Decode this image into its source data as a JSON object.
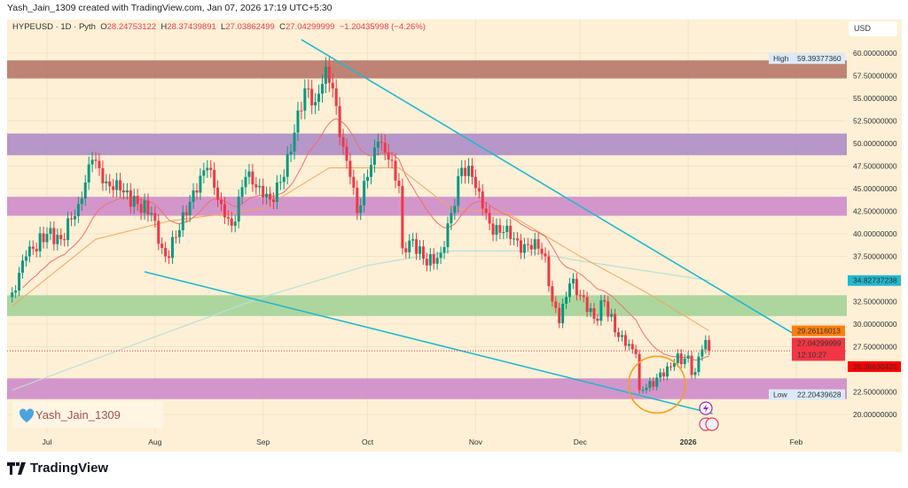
{
  "credit": "Yash_Jain_1309 created with TradingView.com, Jan 07, 2026 17:19 UTC+5:30",
  "legend": {
    "symbol": "HYPEUSD · 1D · Pyth",
    "o_label": "O",
    "o": "28.24753122",
    "h_label": "H",
    "h": "28.37439891",
    "l_label": "L",
    "l": "27.03862499",
    "c_label": "C",
    "c": "27.04299999",
    "change": "−1.20435998 (−4.26%)"
  },
  "currency": "USD",
  "watermark": "Yash_Jain_1309",
  "brand": "TradingView",
  "colors": {
    "up": "#089981",
    "down": "#f23645",
    "trendline": "#22b8cf",
    "ema_fast": "#f26d6d",
    "ema_slow": "#f7a35c",
    "ma_long": "#b8e0d8",
    "circle": "#f7a01e",
    "background": "#fdf0d6"
  },
  "chart_data": {
    "type": "candlestick",
    "ylim": [
      18.5,
      61
    ],
    "y_ticks": [
      "60.00000000",
      "57.50000000",
      "55.00000000",
      "52.50000000",
      "50.00000000",
      "47.50000000",
      "45.00000000",
      "42.50000000",
      "40.00000000",
      "37.50000000",
      "32.50000000",
      "30.00000000",
      "27.50000000",
      "22.50000000",
      "20.00000000"
    ],
    "y_tick_values": [
      60,
      57.5,
      55,
      52.5,
      50,
      47.5,
      45,
      42.5,
      40,
      37.5,
      32.5,
      30,
      27.5,
      22.5,
      20
    ],
    "x_ticks": [
      {
        "label": "Jul",
        "date": "2025-07-01"
      },
      {
        "label": "Aug",
        "date": "2025-08-01"
      },
      {
        "label": "Sep",
        "date": "2025-09-01"
      },
      {
        "label": "Oct",
        "date": "2025-10-01"
      },
      {
        "label": "Nov",
        "date": "2025-11-01"
      },
      {
        "label": "Dec",
        "date": "2025-12-01"
      },
      {
        "label": "2026",
        "date": "2026-01-01"
      },
      {
        "label": "Feb",
        "date": "2026-02-01"
      }
    ],
    "close": [
      [
        "2025-06-21",
        33.5
      ],
      [
        "2025-06-25",
        37.5
      ],
      [
        "2025-07-01",
        40
      ],
      [
        "2025-07-05",
        39.4
      ],
      [
        "2025-07-10",
        43.3
      ],
      [
        "2025-07-14",
        48.2
      ],
      [
        "2025-07-18",
        45.8
      ],
      [
        "2025-07-22",
        44.8
      ],
      [
        "2025-07-27",
        43.3
      ],
      [
        "2025-07-31",
        42.3
      ],
      [
        "2025-08-02",
        38.9
      ],
      [
        "2025-08-04",
        37.5
      ],
      [
        "2025-08-08",
        40.4
      ],
      [
        "2025-08-12",
        44.8
      ],
      [
        "2025-08-16",
        47.3
      ],
      [
        "2025-08-20",
        43.3
      ],
      [
        "2025-08-23",
        40.9
      ],
      [
        "2025-08-27",
        46.3
      ],
      [
        "2025-08-31",
        45.3
      ],
      [
        "2025-09-03",
        43.8
      ],
      [
        "2025-09-07",
        46.3
      ],
      [
        "2025-09-10",
        51.2
      ],
      [
        "2025-09-13",
        56.1
      ],
      [
        "2025-09-16",
        54.6
      ],
      [
        "2025-09-18",
        56.6
      ],
      [
        "2025-09-19",
        58.5
      ],
      [
        "2025-09-21",
        56.1
      ],
      [
        "2025-09-23",
        50.7
      ],
      [
        "2025-09-26",
        46.3
      ],
      [
        "2025-09-28",
        42.3
      ],
      [
        "2025-10-01",
        46.3
      ],
      [
        "2025-10-04",
        50.2
      ],
      [
        "2025-10-07",
        48.2
      ],
      [
        "2025-10-10",
        45.3
      ],
      [
        "2025-10-11",
        38.4
      ],
      [
        "2025-10-14",
        39.4
      ],
      [
        "2025-10-18",
        36.5
      ],
      [
        "2025-10-22",
        37.9
      ],
      [
        "2025-10-25",
        42.3
      ],
      [
        "2025-10-28",
        47.3
      ],
      [
        "2025-10-31",
        46.3
      ],
      [
        "2025-11-03",
        42.8
      ],
      [
        "2025-11-06",
        39.9
      ],
      [
        "2025-11-10",
        40.9
      ],
      [
        "2025-11-14",
        37.9
      ],
      [
        "2025-11-18",
        39.4
      ],
      [
        "2025-11-21",
        37.5
      ],
      [
        "2025-11-23",
        32.5
      ],
      [
        "2025-11-25",
        30.1
      ],
      [
        "2025-11-28",
        34.5
      ],
      [
        "2025-12-02",
        33.0
      ],
      [
        "2025-12-05",
        30.6
      ],
      [
        "2025-12-08",
        32.5
      ],
      [
        "2025-12-11",
        29.1
      ],
      [
        "2025-12-14",
        27.6
      ],
      [
        "2025-12-17",
        26.7
      ],
      [
        "2025-12-18",
        22.7
      ],
      [
        "2025-12-21",
        23.7
      ],
      [
        "2025-12-25",
        24.2
      ],
      [
        "2025-12-28",
        25.7
      ],
      [
        "2025-12-31",
        26.2
      ],
      [
        "2026-01-03",
        24.7
      ],
      [
        "2026-01-05",
        27.2
      ],
      [
        "2026-01-06",
        28.25
      ],
      [
        "2026-01-07",
        27.04
      ]
    ],
    "ma_long": [
      [
        "2025-06-21",
        22.7
      ],
      [
        "2025-08-01",
        28.6
      ],
      [
        "2025-09-01",
        33
      ],
      [
        "2025-10-01",
        36.5
      ],
      [
        "2025-10-25",
        38.1
      ],
      [
        "2025-11-15",
        38.1
      ],
      [
        "2025-12-01",
        37
      ],
      [
        "2026-01-07",
        34.83
      ]
    ],
    "ema_slow": [
      [
        "2025-06-21",
        32
      ],
      [
        "2025-07-15",
        39.4
      ],
      [
        "2025-08-05",
        41.4
      ],
      [
        "2025-09-01",
        42.8
      ],
      [
        "2025-09-20",
        47.3
      ],
      [
        "2025-10-10",
        47.3
      ],
      [
        "2025-10-25",
        42.8
      ],
      [
        "2025-11-10",
        42.3
      ],
      [
        "2025-12-01",
        37.5
      ],
      [
        "2025-12-20",
        33.5
      ],
      [
        "2026-01-07",
        29.26
      ]
    ],
    "zones": [
      {
        "from": 57.2,
        "to": 59.2,
        "color": "#b87a6c"
      },
      {
        "from": 48.7,
        "to": 51.1,
        "color": "#b08fc6"
      },
      {
        "from": 42.0,
        "to": 44.1,
        "color": "#cf8ec9"
      },
      {
        "from": 30.9,
        "to": 33.2,
        "color": "#a6d49a"
      },
      {
        "from": 21.7,
        "to": 24.0,
        "color": "#cf8ec9"
      }
    ],
    "trendlines": [
      {
        "from": [
          "2025-09-12",
          61.5
        ],
        "to": [
          "2026-01-31",
          29.0
        ]
      },
      {
        "from": [
          "2025-07-29",
          35.8
        ],
        "to": [
          "2026-01-08",
          20.1
        ]
      }
    ],
    "circle": {
      "date": "2025-12-23",
      "price": 23.3
    },
    "labels": {
      "high": {
        "tag": "High",
        "value": "59.39377360",
        "color": "#dbe9f8"
      },
      "low": {
        "tag": "Low",
        "value": "22.20439628",
        "color": "#dbe9f8"
      },
      "ma_long": {
        "value": "34.82737238",
        "color": "#22b8cf"
      },
      "ema_slow": {
        "value": "29.26116013",
        "color": "#ff7f0e"
      },
      "last": {
        "value": "27.04299999",
        "countdown": "12:10:27",
        "color": "#f23645"
      },
      "ema_fast": {
        "value": "26.36630425",
        "color": "#ff0000"
      }
    }
  }
}
